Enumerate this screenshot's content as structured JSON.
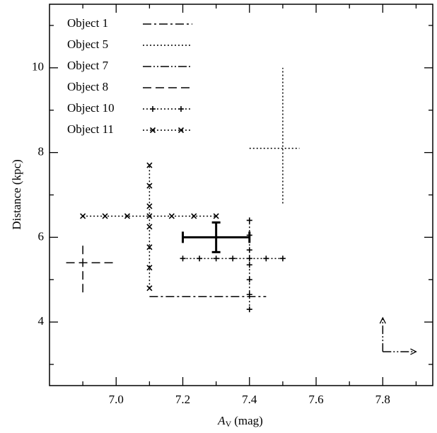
{
  "chart_data": {
    "type": "errorcross",
    "xlabel": [
      "A",
      "V",
      "(mag)"
    ],
    "ylabel": "Distance (kpc)",
    "xlim": [
      6.8,
      7.95
    ],
    "ylim": [
      2.5,
      11.5
    ],
    "xticks": [
      {
        "value": 7.0,
        "label": "7.0"
      },
      7.2,
      7.4,
      7.6,
      7.8
    ],
    "xminor": [
      6.9,
      7.1,
      7.3,
      7.5,
      7.7,
      7.9
    ],
    "yticks": [
      4,
      6,
      8,
      10
    ],
    "yminor": [
      3,
      5,
      7,
      9,
      11
    ],
    "legend": "upper left",
    "color": "#000000",
    "series": [
      {
        "name": "Object 1",
        "style": "dashdot",
        "x": 7.1,
        "x_low": 7.1,
        "x_high": 7.45,
        "y": 4.6
      },
      {
        "name": "Object 5",
        "style": "dotted",
        "x": 7.5,
        "x_low": 7.4,
        "x_high": 7.55,
        "y": 8.1,
        "y_low": 6.8,
        "y_high": 10.0
      },
      {
        "name": "Object 7",
        "style": "dashdotdot",
        "limits": "lower",
        "x": 7.8,
        "x_high": 7.9,
        "y": 3.3,
        "y_high": 4.1
      },
      {
        "name": "Object 8",
        "style": "dashed",
        "x": 6.9,
        "x_low": 6.85,
        "x_high": 7.0,
        "y": 5.4,
        "y_low": 4.7,
        "y_high": 5.9
      },
      {
        "name": "Object 10",
        "style": "dotted",
        "marker": "+",
        "x": 7.4,
        "x_low": 7.2,
        "x_high": 7.5,
        "y": 5.5,
        "y_low": 4.3,
        "y_high": 6.4
      },
      {
        "name": "Object 11",
        "style": "dotted",
        "marker": "x",
        "x": 7.1,
        "x_low": 6.9,
        "x_high": 7.3,
        "y": 6.5,
        "y_low": 4.8,
        "y_high": 7.7
      },
      {
        "style": "solid",
        "width": 3,
        "caps": true,
        "x": 7.3,
        "x_low": 7.2,
        "x_high": 7.4,
        "y": 6.0,
        "y_low": 5.65,
        "y_high": 6.35
      }
    ]
  }
}
